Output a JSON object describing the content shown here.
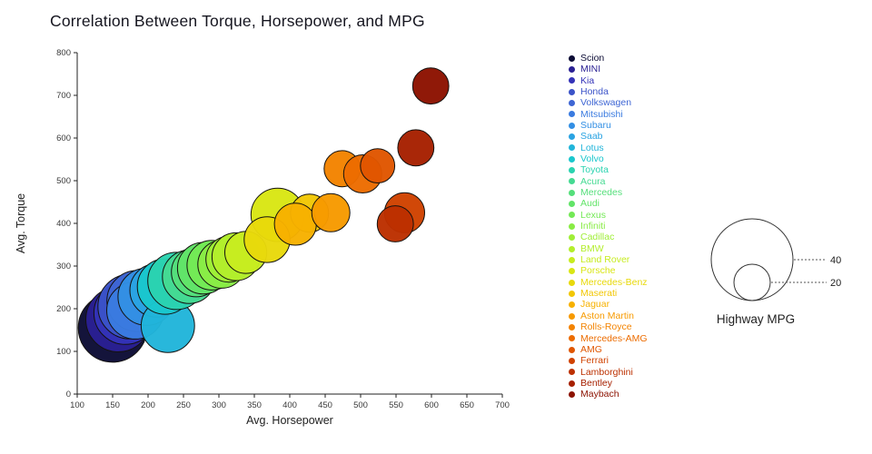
{
  "chart_data": {
    "type": "scatter",
    "title": "Correlation Between Torque, Horsepower, and MPG",
    "xlabel": "Avg. Horsepower",
    "ylabel": "Avg. Torque",
    "xlim": [
      100,
      700
    ],
    "ylim": [
      0,
      800
    ],
    "xticks": [
      100,
      150,
      200,
      250,
      300,
      350,
      400,
      450,
      500,
      550,
      600,
      650,
      700
    ],
    "yticks": [
      0,
      100,
      200,
      300,
      400,
      500,
      600,
      700,
      800
    ],
    "grid": false,
    "legend_position": "right",
    "size_legend": {
      "title": "Highway MPG",
      "values": [
        40,
        20
      ]
    },
    "size_note": "bubble radius encodes highway MPG",
    "series": [
      {
        "name": "Scion",
        "color": "#0c0c35",
        "x": 150,
        "y": 155,
        "mpg": 36
      },
      {
        "name": "MINI",
        "color": "#2a2093",
        "x": 158,
        "y": 175,
        "mpg": 34
      },
      {
        "name": "Kia",
        "color": "#3433b8",
        "x": 168,
        "y": 190,
        "mpg": 33
      },
      {
        "name": "Honda",
        "color": "#3b53c8",
        "x": 175,
        "y": 205,
        "mpg": 34
      },
      {
        "name": "Volkswagen",
        "color": "#3e66d4",
        "x": 185,
        "y": 218,
        "mpg": 32
      },
      {
        "name": "Mitsubishi",
        "color": "#3a7be0",
        "x": 182,
        "y": 196,
        "mpg": 30
      },
      {
        "name": "Subaru",
        "color": "#338fe4",
        "x": 198,
        "y": 228,
        "mpg": 30
      },
      {
        "name": "Saab",
        "color": "#2aa3e2",
        "x": 212,
        "y": 243,
        "mpg": 28
      },
      {
        "name": "Lotus",
        "color": "#21b5da",
        "x": 228,
        "y": 160,
        "mpg": 28
      },
      {
        "name": "Volvo",
        "color": "#1ac7cd",
        "x": 224,
        "y": 252,
        "mpg": 29
      },
      {
        "name": "Toyota",
        "color": "#2bd3b0",
        "x": 240,
        "y": 265,
        "mpg": 30
      },
      {
        "name": "Acura",
        "color": "#45da92",
        "x": 258,
        "y": 275,
        "mpg": 28
      },
      {
        "name": "Mercedes",
        "color": "#55df7b",
        "x": 268,
        "y": 286,
        "mpg": 26
      },
      {
        "name": "Audi",
        "color": "#62e468",
        "x": 278,
        "y": 295,
        "mpg": 27
      },
      {
        "name": "Lexus",
        "color": "#74e956",
        "x": 290,
        "y": 302,
        "mpg": 26
      },
      {
        "name": "Infiniti",
        "color": "#89ec45",
        "x": 304,
        "y": 304,
        "mpg": 25
      },
      {
        "name": "Cadillac",
        "color": "#9fee37",
        "x": 314,
        "y": 316,
        "mpg": 24
      },
      {
        "name": "BMW",
        "color": "#b3ee2c",
        "x": 324,
        "y": 322,
        "mpg": 25
      },
      {
        "name": "Land Rover",
        "color": "#c7ec20",
        "x": 338,
        "y": 332,
        "mpg": 22
      },
      {
        "name": "Porsche",
        "color": "#d9e614",
        "x": 383,
        "y": 420,
        "mpg": 28
      },
      {
        "name": "Mercedes-Benz",
        "color": "#e8d90b",
        "x": 368,
        "y": 362,
        "mpg": 24
      },
      {
        "name": "Maserati",
        "color": "#f2c705",
        "x": 428,
        "y": 424,
        "mpg": 20
      },
      {
        "name": "Jaguar",
        "color": "#f7b100",
        "x": 408,
        "y": 398,
        "mpg": 22
      },
      {
        "name": "Aston Martin",
        "color": "#f79a00",
        "x": 458,
        "y": 425,
        "mpg": 20
      },
      {
        "name": "Rolls-Royce",
        "color": "#f38300",
        "x": 474,
        "y": 528,
        "mpg": 19
      },
      {
        "name": "Mercedes-AMG",
        "color": "#ec6c00",
        "x": 503,
        "y": 516,
        "mpg": 20
      },
      {
        "name": "AMG",
        "color": "#e05600",
        "x": 524,
        "y": 535,
        "mpg": 18
      },
      {
        "name": "Ferrari",
        "color": "#d04200",
        "x": 562,
        "y": 425,
        "mpg": 21
      },
      {
        "name": "Lamborghini",
        "color": "#bc3000",
        "x": 549,
        "y": 399,
        "mpg": 19
      },
      {
        "name": "Bentley",
        "color": "#a62000",
        "x": 578,
        "y": 577,
        "mpg": 19
      },
      {
        "name": "Maybach",
        "color": "#8c1200",
        "x": 599,
        "y": 722,
        "mpg": 19
      }
    ]
  }
}
